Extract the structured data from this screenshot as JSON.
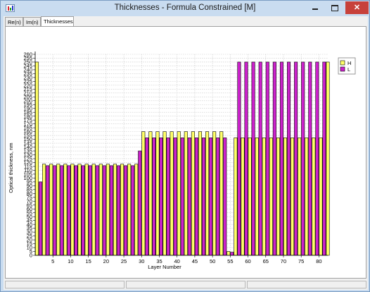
{
  "window": {
    "title": "Thicknesses - Formula Constrained [M]",
    "minimize_label": "",
    "maximize_label": "",
    "close_label": "✕"
  },
  "tabs": [
    {
      "label": "Re(n)",
      "active": false
    },
    {
      "label": "Im(n)",
      "active": false
    },
    {
      "label": "Thicknesses",
      "active": true
    }
  ],
  "colors": {
    "H": "#ffff66",
    "L": "#cc22cc",
    "grid": "#c8c8c8"
  },
  "chart_data": {
    "type": "bar",
    "title": "",
    "xlabel": "Layer Number",
    "ylabel": "Optical thickness, nm",
    "xlim": [
      0,
      82.5
    ],
    "ylim": [
      0,
      260
    ],
    "y_ticks": [
      0,
      5,
      10,
      15,
      20,
      25,
      30,
      35,
      40,
      45,
      50,
      55,
      60,
      65,
      70,
      75,
      80,
      85,
      90,
      95,
      100,
      105,
      110,
      115,
      120,
      125,
      130,
      135,
      140,
      145,
      150,
      155,
      160,
      165,
      170,
      175,
      180,
      185,
      190,
      195,
      200,
      205,
      210,
      215,
      220,
      225,
      230,
      235,
      240,
      245,
      250,
      255,
      260
    ],
    "x_ticks": [
      5,
      10,
      15,
      20,
      25,
      30,
      35,
      40,
      45,
      50,
      55,
      60,
      65,
      70,
      75,
      80
    ],
    "grid": true,
    "legend_position": "right",
    "legend": [
      {
        "name": "H",
        "color": "#ffff66"
      },
      {
        "name": "L",
        "color": "#cc22cc"
      }
    ],
    "layers": [
      {
        "layer": 1,
        "material": "H",
        "thickness": 250
      },
      {
        "layer": 2,
        "material": "L",
        "thickness": 95
      },
      {
        "layer": 3,
        "material": "H",
        "thickness": 118
      },
      {
        "layer": 4,
        "material": "L",
        "thickness": 116
      },
      {
        "layer": 5,
        "material": "H",
        "thickness": 118
      },
      {
        "layer": 6,
        "material": "L",
        "thickness": 116
      },
      {
        "layer": 7,
        "material": "H",
        "thickness": 118
      },
      {
        "layer": 8,
        "material": "L",
        "thickness": 116
      },
      {
        "layer": 9,
        "material": "H",
        "thickness": 118
      },
      {
        "layer": 10,
        "material": "L",
        "thickness": 116
      },
      {
        "layer": 11,
        "material": "H",
        "thickness": 118
      },
      {
        "layer": 12,
        "material": "L",
        "thickness": 116
      },
      {
        "layer": 13,
        "material": "H",
        "thickness": 118
      },
      {
        "layer": 14,
        "material": "L",
        "thickness": 116
      },
      {
        "layer": 15,
        "material": "H",
        "thickness": 118
      },
      {
        "layer": 16,
        "material": "L",
        "thickness": 116
      },
      {
        "layer": 17,
        "material": "H",
        "thickness": 118
      },
      {
        "layer": 18,
        "material": "L",
        "thickness": 116
      },
      {
        "layer": 19,
        "material": "H",
        "thickness": 118
      },
      {
        "layer": 20,
        "material": "L",
        "thickness": 116
      },
      {
        "layer": 21,
        "material": "H",
        "thickness": 118
      },
      {
        "layer": 22,
        "material": "L",
        "thickness": 116
      },
      {
        "layer": 23,
        "material": "H",
        "thickness": 118
      },
      {
        "layer": 24,
        "material": "L",
        "thickness": 116
      },
      {
        "layer": 25,
        "material": "H",
        "thickness": 118
      },
      {
        "layer": 26,
        "material": "L",
        "thickness": 116
      },
      {
        "layer": 27,
        "material": "H",
        "thickness": 118
      },
      {
        "layer": 28,
        "material": "L",
        "thickness": 116
      },
      {
        "layer": 29,
        "material": "H",
        "thickness": 118
      },
      {
        "layer": 30,
        "material": "L",
        "thickness": 135
      },
      {
        "layer": 31,
        "material": "H",
        "thickness": 160
      },
      {
        "layer": 32,
        "material": "L",
        "thickness": 152
      },
      {
        "layer": 33,
        "material": "H",
        "thickness": 160
      },
      {
        "layer": 34,
        "material": "L",
        "thickness": 152
      },
      {
        "layer": 35,
        "material": "H",
        "thickness": 160
      },
      {
        "layer": 36,
        "material": "L",
        "thickness": 152
      },
      {
        "layer": 37,
        "material": "H",
        "thickness": 160
      },
      {
        "layer": 38,
        "material": "L",
        "thickness": 152
      },
      {
        "layer": 39,
        "material": "H",
        "thickness": 160
      },
      {
        "layer": 40,
        "material": "L",
        "thickness": 152
      },
      {
        "layer": 41,
        "material": "H",
        "thickness": 160
      },
      {
        "layer": 42,
        "material": "L",
        "thickness": 152
      },
      {
        "layer": 43,
        "material": "H",
        "thickness": 160
      },
      {
        "layer": 44,
        "material": "L",
        "thickness": 152
      },
      {
        "layer": 45,
        "material": "H",
        "thickness": 160
      },
      {
        "layer": 46,
        "material": "L",
        "thickness": 152
      },
      {
        "layer": 47,
        "material": "H",
        "thickness": 160
      },
      {
        "layer": 48,
        "material": "L",
        "thickness": 152
      },
      {
        "layer": 49,
        "material": "H",
        "thickness": 160
      },
      {
        "layer": 50,
        "material": "L",
        "thickness": 152
      },
      {
        "layer": 51,
        "material": "H",
        "thickness": 160
      },
      {
        "layer": 52,
        "material": "L",
        "thickness": 152
      },
      {
        "layer": 53,
        "material": "H",
        "thickness": 160
      },
      {
        "layer": 54,
        "material": "L",
        "thickness": 152
      },
      {
        "layer": 55,
        "material": "H",
        "thickness": 5
      },
      {
        "layer": 56,
        "material": "L",
        "thickness": 4
      },
      {
        "layer": 57,
        "material": "H",
        "thickness": 152
      },
      {
        "layer": 58,
        "material": "L",
        "thickness": 250
      },
      {
        "layer": 59,
        "material": "H",
        "thickness": 152
      },
      {
        "layer": 60,
        "material": "L",
        "thickness": 250
      },
      {
        "layer": 61,
        "material": "H",
        "thickness": 152
      },
      {
        "layer": 62,
        "material": "L",
        "thickness": 250
      },
      {
        "layer": 63,
        "material": "H",
        "thickness": 152
      },
      {
        "layer": 64,
        "material": "L",
        "thickness": 250
      },
      {
        "layer": 65,
        "material": "H",
        "thickness": 152
      },
      {
        "layer": 66,
        "material": "L",
        "thickness": 250
      },
      {
        "layer": 67,
        "material": "H",
        "thickness": 152
      },
      {
        "layer": 68,
        "material": "L",
        "thickness": 250
      },
      {
        "layer": 69,
        "material": "H",
        "thickness": 152
      },
      {
        "layer": 70,
        "material": "L",
        "thickness": 250
      },
      {
        "layer": 71,
        "material": "H",
        "thickness": 152
      },
      {
        "layer": 72,
        "material": "L",
        "thickness": 250
      },
      {
        "layer": 73,
        "material": "H",
        "thickness": 152
      },
      {
        "layer": 74,
        "material": "L",
        "thickness": 250
      },
      {
        "layer": 75,
        "material": "H",
        "thickness": 152
      },
      {
        "layer": 76,
        "material": "L",
        "thickness": 250
      },
      {
        "layer": 77,
        "material": "H",
        "thickness": 152
      },
      {
        "layer": 78,
        "material": "L",
        "thickness": 250
      },
      {
        "layer": 79,
        "material": "H",
        "thickness": 152
      },
      {
        "layer": 80,
        "material": "L",
        "thickness": 250
      },
      {
        "layer": 81,
        "material": "H",
        "thickness": 152
      },
      {
        "layer": 82,
        "material": "L",
        "thickness": 250
      },
      {
        "layer": 83,
        "material": "H",
        "thickness": 250
      }
    ]
  }
}
